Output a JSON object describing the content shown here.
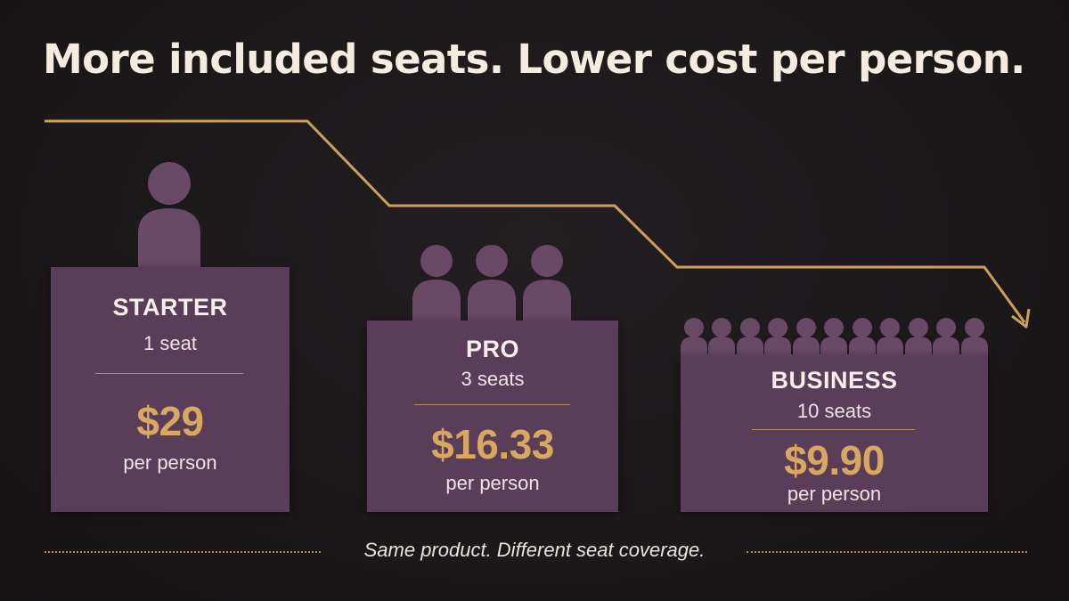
{
  "headline": "More included seats. Lower cost per person.",
  "tiers": [
    {
      "name": "STARTER",
      "seats": "1 seat",
      "price": "$29",
      "per": "per person"
    },
    {
      "name": "PRO",
      "seats": "3 seats",
      "price": "$16.33",
      "per": "per person"
    },
    {
      "name": "BUSINESS",
      "seats": "10 seats",
      "price": "$9.90",
      "per": "per person"
    }
  ],
  "footer": {
    "note": "Same product. Different seat coverage."
  },
  "colors": {
    "card": "#5a3d58",
    "accent": "#d8a860",
    "figure": "#6a4966",
    "background": "#1c191b"
  },
  "icons": {
    "seat_figure": "person-icon",
    "trend_line": "descending-arrow"
  }
}
